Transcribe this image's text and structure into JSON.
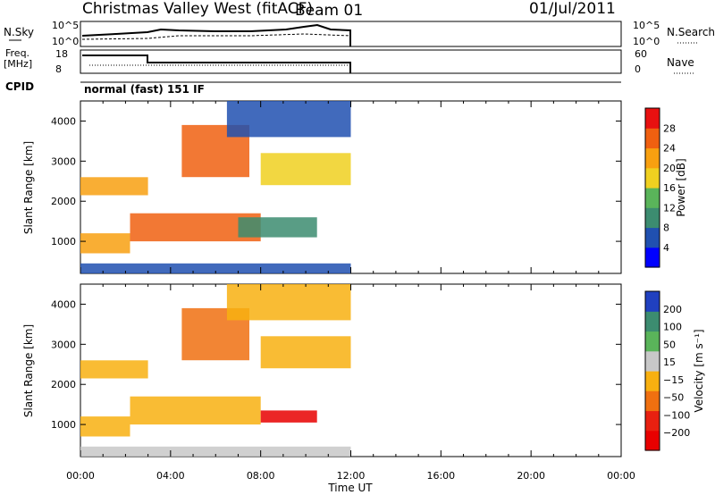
{
  "header": {
    "station": "Christmas Valley West (fitACF)",
    "beam": "Beam 01",
    "date": "01/Jul/2011"
  },
  "panels": {
    "nsky": {
      "label": "N.Sky",
      "ticks": [
        "10^5",
        "10^0"
      ],
      "right_label": "N.Search",
      "right_ticks": [
        "10^5",
        "10^0"
      ]
    },
    "freq": {
      "label_line1": "Freq.",
      "label_line2": "[MHz]",
      "ticks": [
        "18",
        "8"
      ],
      "right_label": "Nave",
      "right_ticks": [
        "60",
        "0"
      ]
    },
    "cpid": {
      "label": "CPID",
      "text": "normal (fast) 151 IF"
    }
  },
  "colors": {
    "power": [
      "#0000ff",
      "#2050b0",
      "#3c8c70",
      "#5ab45a",
      "#f0d020",
      "#f8a010",
      "#f06010",
      "#e81010"
    ],
    "velocity": [
      "#2040c0",
      "#3c8c70",
      "#5ab45a",
      "#c8c8c8",
      "#f8b010",
      "#f07010",
      "#e82010",
      "#e80000"
    ]
  },
  "chart_data": [
    {
      "type": "heatmap",
      "name": "power",
      "ylabel": "Slant Range [km]",
      "xlabel": "",
      "yticks": [
        "1000",
        "2000",
        "3000",
        "4000"
      ],
      "ylim": [
        200,
        4500
      ],
      "xlim": [
        0,
        24
      ],
      "xticks": [
        "00:00",
        "04:00",
        "08:00",
        "12:00",
        "16:00",
        "20:00",
        "00:00"
      ],
      "colorbar": {
        "label": "Power [dB]",
        "ticks": [
          "28",
          "24",
          "20",
          "16",
          "12",
          "8",
          "4"
        ],
        "levels": [
          0,
          4,
          8,
          12,
          16,
          20,
          24,
          28,
          32
        ]
      },
      "bands": [
        {
          "x": [
            0.0,
            12.0
          ],
          "y": [
            200,
            450
          ],
          "value": 6
        },
        {
          "x": [
            0.0,
            2.2
          ],
          "y": [
            700,
            1200
          ],
          "value": 22
        },
        {
          "x": [
            2.2,
            8.0
          ],
          "y": [
            1000,
            1700
          ],
          "value": 27
        },
        {
          "x": [
            0.0,
            3.0
          ],
          "y": [
            2150,
            2600
          ],
          "value": 23
        },
        {
          "x": [
            4.5,
            7.5
          ],
          "y": [
            2600,
            3900
          ],
          "value": 25
        },
        {
          "x": [
            8.0,
            12.0
          ],
          "y": [
            2400,
            3200
          ],
          "value": 16
        },
        {
          "x": [
            6.5,
            12.0
          ],
          "y": [
            3600,
            4500
          ],
          "value": 6
        },
        {
          "x": [
            7.0,
            10.5
          ],
          "y": [
            1100,
            1600
          ],
          "value": 10
        }
      ]
    },
    {
      "type": "heatmap",
      "name": "velocity",
      "ylabel": "Slant Range [km]",
      "xlabel": "Time UT",
      "yticks": [
        "1000",
        "2000",
        "3000",
        "4000"
      ],
      "ylim": [
        200,
        4500
      ],
      "xlim": [
        0,
        24
      ],
      "xticks": [
        "00:00",
        "04:00",
        "08:00",
        "12:00",
        "16:00",
        "20:00",
        "00:00"
      ],
      "colorbar": {
        "label": "Velocity [m s⁻¹]",
        "ticks": [
          "200",
          "100",
          "50",
          "15",
          "−15",
          "−50",
          "−100",
          "−200"
        ],
        "levels": [
          250,
          200,
          100,
          50,
          15,
          -15,
          -50,
          -100,
          -200
        ]
      },
      "bands": [
        {
          "x": [
            0.0,
            12.0
          ],
          "y": [
            200,
            450
          ],
          "value": 30
        },
        {
          "x": [
            0.0,
            2.2
          ],
          "y": [
            700,
            1200
          ],
          "value": 0
        },
        {
          "x": [
            2.2,
            8.0
          ],
          "y": [
            1000,
            1700
          ],
          "value": 0
        },
        {
          "x": [
            0.0,
            3.0
          ],
          "y": [
            2150,
            2600
          ],
          "value": 0
        },
        {
          "x": [
            4.5,
            7.5
          ],
          "y": [
            2600,
            3900
          ],
          "value": -30
        },
        {
          "x": [
            8.0,
            12.0
          ],
          "y": [
            2400,
            3200
          ],
          "value": 0
        },
        {
          "x": [
            8.0,
            10.5
          ],
          "y": [
            1050,
            1350
          ],
          "value": -250
        },
        {
          "x": [
            6.5,
            12.0
          ],
          "y": [
            3600,
            4500
          ],
          "value": 0
        }
      ]
    }
  ]
}
